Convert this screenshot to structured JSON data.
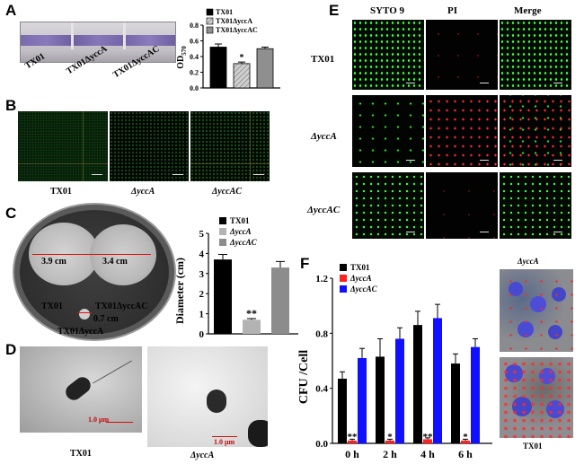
{
  "panels": {
    "A": "A",
    "B": "B",
    "C": "C",
    "D": "D",
    "E": "E",
    "F": "F"
  },
  "panelA": {
    "tube_labels": [
      "TX01",
      "TX01ΔyccA",
      "TX01ΔyccAC"
    ],
    "chart_legend": [
      "TX01",
      "TX01ΔyccA",
      "TX01ΔyccAC"
    ]
  },
  "panelB": {
    "labels": [
      "TX01",
      "ΔyccA",
      "ΔyccAC"
    ]
  },
  "panelC": {
    "plate_measure_1": "3.9 cm",
    "plate_measure_2": "3.4 cm",
    "plate_measure_3": "0.7 cm",
    "plate_label_tx01": "TX01",
    "plate_label_comp": "TX01ΔyccAC",
    "plate_label_mut": "TX01ΔyccA",
    "legend": [
      "TX01",
      "ΔyccA",
      "ΔyccAC"
    ]
  },
  "panelD": {
    "labels": [
      "TX01",
      "ΔyccA"
    ],
    "scale_1": "1.0 μm",
    "scale_2": "1.0 μm"
  },
  "panelE": {
    "columns": [
      "SYTO 9",
      "PI",
      "Merge"
    ],
    "rows": [
      "TX01",
      "ΔyccA",
      "ΔyccAC"
    ]
  },
  "panelF": {
    "legend": [
      "TX01",
      "ΔyccA",
      "ΔyccAC"
    ],
    "image_labels": [
      "ΔyccA",
      "TX01"
    ]
  },
  "colors": {
    "tx01": "#000000",
    "mutant_hatched": "#bdbdbd",
    "complement_gray": "#8c8c8c",
    "mutant_red": "#ff2020",
    "complement_blue": "#1010ff",
    "fluor_green": "#3cff3c",
    "fluor_red": "#ff2a2a"
  },
  "chart_data": [
    {
      "type": "bar",
      "title": "",
      "xlabel": "",
      "ylabel": "OD570",
      "ylim": [
        0,
        0.8
      ],
      "yticks": [
        "0.0",
        "0.2",
        "0.4",
        "0.6",
        "0.8"
      ],
      "categories": [
        "TX01",
        "TX01ΔyccA",
        "TX01ΔyccAC"
      ],
      "values": [
        0.52,
        0.31,
        0.5
      ],
      "errors": [
        0.04,
        0.02,
        0.02
      ],
      "annotations": [
        {
          "category": "TX01ΔyccA",
          "text": "*"
        }
      ]
    },
    {
      "type": "bar",
      "title": "",
      "xlabel": "",
      "ylabel": "Diameter (cm)",
      "ylim": [
        0,
        5
      ],
      "yticks": [
        "0",
        "1",
        "2",
        "3",
        "4",
        "5"
      ],
      "categories": [
        "TX01",
        "ΔyccA",
        "ΔyccAC"
      ],
      "values": [
        3.7,
        0.7,
        3.3
      ],
      "errors": [
        0.25,
        0.06,
        0.3
      ],
      "annotations": [
        {
          "category": "ΔyccA",
          "text": "**"
        }
      ]
    },
    {
      "type": "bar",
      "title": "",
      "xlabel": "",
      "ylabel": "CFU /Cell",
      "ylim": [
        0,
        1.2
      ],
      "yticks": [
        "0.0",
        "0.4",
        "0.8",
        "1.2"
      ],
      "categories": [
        "0 h",
        "2 h",
        "4 h",
        "6 h"
      ],
      "series": [
        {
          "name": "TX01",
          "values": [
            0.47,
            0.63,
            0.86,
            0.58
          ],
          "errors": [
            0.05,
            0.13,
            0.1,
            0.07
          ]
        },
        {
          "name": "ΔyccA",
          "values": [
            0.02,
            0.02,
            0.03,
            0.02
          ],
          "errors": [
            0.01,
            0.01,
            0.01,
            0.01
          ]
        },
        {
          "name": "ΔyccAC",
          "values": [
            0.62,
            0.76,
            0.91,
            0.7
          ],
          "errors": [
            0.07,
            0.08,
            0.1,
            0.06
          ]
        }
      ],
      "annotations": [
        {
          "category": "0 h",
          "text": "**"
        },
        {
          "category": "2 h",
          "text": "*"
        },
        {
          "category": "4 h",
          "text": "**"
        },
        {
          "category": "6 h",
          "text": "*"
        }
      ]
    }
  ]
}
